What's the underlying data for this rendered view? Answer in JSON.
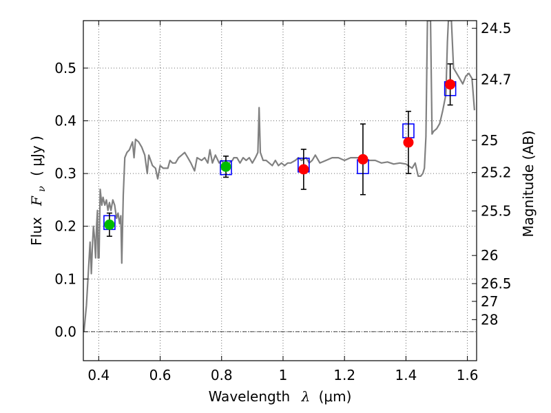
{
  "chart_data": {
    "type": "scatter",
    "title": "",
    "xlabel_prefix": "Wavelength",
    "xlabel_symbol": "λ",
    "xlabel_unit": "(μm)",
    "ylabel_prefix": "Flux",
    "ylabel_symbol": "F",
    "ylabel_subscript": "ν",
    "ylabel_unit": "( μJy )",
    "ylabel_right": "Magnitude (AB)",
    "xlim": [
      0.35,
      1.63
    ],
    "ylim": [
      -0.055,
      0.59
    ],
    "grid": true,
    "x_ticks": [
      {
        "value": 0.4,
        "label": "0.4"
      },
      {
        "value": 0.6,
        "label": "0.6"
      },
      {
        "value": 0.8,
        "label": "0.8"
      },
      {
        "value": 1.0,
        "label": "1"
      },
      {
        "value": 1.2,
        "label": "1.2"
      },
      {
        "value": 1.4,
        "label": "1.4"
      },
      {
        "value": 1.6,
        "label": "1.6"
      }
    ],
    "y_ticks": [
      {
        "value": 0.0,
        "label": "0.0"
      },
      {
        "value": 0.1,
        "label": "0.1"
      },
      {
        "value": 0.2,
        "label": "0.2"
      },
      {
        "value": 0.3,
        "label": "0.3"
      },
      {
        "value": 0.4,
        "label": "0.4"
      },
      {
        "value": 0.5,
        "label": "0.5"
      }
    ],
    "mag_ticks": [
      {
        "value": 24.5,
        "label": "24.5"
      },
      {
        "value": 24.7,
        "label": "24.7"
      },
      {
        "value": 25.0,
        "label": "25"
      },
      {
        "value": 25.2,
        "label": "25.2"
      },
      {
        "value": 25.5,
        "label": "25.5"
      },
      {
        "value": 26.0,
        "label": "26"
      },
      {
        "value": 26.5,
        "label": "26.5"
      },
      {
        "value": 27.0,
        "label": "27"
      },
      {
        "value": 28.0,
        "label": "28"
      }
    ],
    "observed": [
      {
        "x": 0.435,
        "y": 0.203,
        "err": 0.022,
        "band": "optical",
        "color": "#00bb00"
      },
      {
        "x": 0.814,
        "y": 0.313,
        "err": 0.02,
        "band": "optical",
        "color": "#00bb00"
      },
      {
        "x": 1.067,
        "y": 0.308,
        "err": 0.038,
        "band": "infrared",
        "color": "#ff0000"
      },
      {
        "x": 1.26,
        "y": 0.327,
        "err": 0.067,
        "band": "infrared",
        "color": "#ff0000"
      },
      {
        "x": 1.408,
        "y": 0.359,
        "err": 0.059,
        "band": "infrared",
        "color": "#ff0000"
      },
      {
        "x": 1.544,
        "y": 0.469,
        "err": 0.039,
        "band": "infrared",
        "color": "#ff0000"
      }
    ],
    "model_photometry": [
      {
        "x": 0.435,
        "y": 0.207
      },
      {
        "x": 0.814,
        "y": 0.311
      },
      {
        "x": 1.067,
        "y": 0.316
      },
      {
        "x": 1.26,
        "y": 0.313
      },
      {
        "x": 1.408,
        "y": 0.381
      },
      {
        "x": 1.544,
        "y": 0.461
      }
    ],
    "spectrum": [
      [
        0.352,
        0.0
      ],
      [
        0.36,
        0.05
      ],
      [
        0.365,
        0.1
      ],
      [
        0.37,
        0.15
      ],
      [
        0.372,
        0.17
      ],
      [
        0.376,
        0.11
      ],
      [
        0.38,
        0.17
      ],
      [
        0.383,
        0.2
      ],
      [
        0.386,
        0.18
      ],
      [
        0.39,
        0.14
      ],
      [
        0.393,
        0.2
      ],
      [
        0.396,
        0.23
      ],
      [
        0.398,
        0.14
      ],
      [
        0.401,
        0.14
      ],
      [
        0.405,
        0.27
      ],
      [
        0.41,
        0.24
      ],
      [
        0.414,
        0.255
      ],
      [
        0.42,
        0.24
      ],
      [
        0.425,
        0.25
      ],
      [
        0.43,
        0.23
      ],
      [
        0.435,
        0.245
      ],
      [
        0.44,
        0.23
      ],
      [
        0.446,
        0.25
      ],
      [
        0.452,
        0.24
      ],
      [
        0.458,
        0.215
      ],
      [
        0.463,
        0.225
      ],
      [
        0.468,
        0.205
      ],
      [
        0.472,
        0.22
      ],
      [
        0.475,
        0.13
      ],
      [
        0.48,
        0.26
      ],
      [
        0.485,
        0.33
      ],
      [
        0.492,
        0.34
      ],
      [
        0.5,
        0.345
      ],
      [
        0.51,
        0.36
      ],
      [
        0.515,
        0.33
      ],
      [
        0.52,
        0.365
      ],
      [
        0.53,
        0.36
      ],
      [
        0.54,
        0.35
      ],
      [
        0.55,
        0.335
      ],
      [
        0.558,
        0.3
      ],
      [
        0.563,
        0.335
      ],
      [
        0.575,
        0.315
      ],
      [
        0.585,
        0.31
      ],
      [
        0.592,
        0.29
      ],
      [
        0.6,
        0.315
      ],
      [
        0.61,
        0.31
      ],
      [
        0.625,
        0.31
      ],
      [
        0.632,
        0.325
      ],
      [
        0.64,
        0.32
      ],
      [
        0.65,
        0.32
      ],
      [
        0.66,
        0.33
      ],
      [
        0.67,
        0.335
      ],
      [
        0.68,
        0.34
      ],
      [
        0.69,
        0.33
      ],
      [
        0.7,
        0.32
      ],
      [
        0.712,
        0.305
      ],
      [
        0.72,
        0.33
      ],
      [
        0.735,
        0.325
      ],
      [
        0.745,
        0.33
      ],
      [
        0.755,
        0.32
      ],
      [
        0.762,
        0.345
      ],
      [
        0.77,
        0.32
      ],
      [
        0.78,
        0.335
      ],
      [
        0.792,
        0.32
      ],
      [
        0.8,
        0.325
      ],
      [
        0.81,
        0.315
      ],
      [
        0.825,
        0.32
      ],
      [
        0.835,
        0.325
      ],
      [
        0.84,
        0.33
      ],
      [
        0.85,
        0.33
      ],
      [
        0.86,
        0.32
      ],
      [
        0.87,
        0.33
      ],
      [
        0.88,
        0.325
      ],
      [
        0.89,
        0.33
      ],
      [
        0.9,
        0.32
      ],
      [
        0.91,
        0.33
      ],
      [
        0.918,
        0.34
      ],
      [
        0.922,
        0.425
      ],
      [
        0.926,
        0.34
      ],
      [
        0.935,
        0.325
      ],
      [
        0.945,
        0.325
      ],
      [
        0.955,
        0.32
      ],
      [
        0.965,
        0.315
      ],
      [
        0.975,
        0.325
      ],
      [
        0.985,
        0.315
      ],
      [
        0.995,
        0.32
      ],
      [
        1.005,
        0.315
      ],
      [
        1.015,
        0.32
      ],
      [
        1.025,
        0.32
      ],
      [
        1.04,
        0.325
      ],
      [
        1.05,
        0.33
      ],
      [
        1.06,
        0.325
      ],
      [
        1.075,
        0.33
      ],
      [
        1.085,
        0.32
      ],
      [
        1.095,
        0.325
      ],
      [
        1.105,
        0.335
      ],
      [
        1.12,
        0.32
      ],
      [
        1.14,
        0.325
      ],
      [
        1.16,
        0.33
      ],
      [
        1.18,
        0.33
      ],
      [
        1.2,
        0.325
      ],
      [
        1.22,
        0.33
      ],
      [
        1.24,
        0.33
      ],
      [
        1.26,
        0.33
      ],
      [
        1.28,
        0.325
      ],
      [
        1.3,
        0.325
      ],
      [
        1.32,
        0.32
      ],
      [
        1.34,
        0.322
      ],
      [
        1.36,
        0.318
      ],
      [
        1.38,
        0.32
      ],
      [
        1.4,
        0.318
      ],
      [
        1.42,
        0.31
      ],
      [
        1.43,
        0.32
      ],
      [
        1.44,
        0.295
      ],
      [
        1.448,
        0.295
      ],
      [
        1.455,
        0.3
      ],
      [
        1.46,
        0.31
      ],
      [
        1.465,
        0.37
      ],
      [
        1.47,
        0.59
      ],
      [
        1.475,
        0.59
      ],
      [
        1.48,
        0.59
      ],
      [
        1.485,
        0.375
      ],
      [
        1.49,
        0.38
      ],
      [
        1.5,
        0.385
      ],
      [
        1.51,
        0.395
      ],
      [
        1.52,
        0.42
      ],
      [
        1.53,
        0.45
      ],
      [
        1.535,
        0.55
      ],
      [
        1.538,
        0.59
      ],
      [
        1.542,
        0.59
      ],
      [
        1.548,
        0.59
      ],
      [
        1.555,
        0.5
      ],
      [
        1.565,
        0.49
      ],
      [
        1.575,
        0.48
      ],
      [
        1.585,
        0.47
      ],
      [
        1.595,
        0.485
      ],
      [
        1.605,
        0.49
      ],
      [
        1.615,
        0.48
      ],
      [
        1.623,
        0.42
      ]
    ],
    "colors": {
      "spectrum": "#808080",
      "model_box": "#0000ff",
      "errorbar": "#000000",
      "grid": "#555555",
      "zero_line": "#000000"
    }
  }
}
